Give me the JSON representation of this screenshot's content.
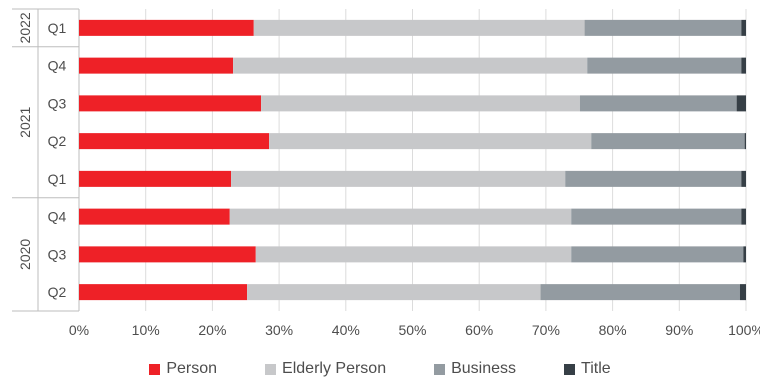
{
  "chart_data": {
    "type": "bar",
    "orientation": "horizontal",
    "stacked": true,
    "percent": true,
    "xlim": [
      0,
      100
    ],
    "x_ticks": [
      "0%",
      "10%",
      "20%",
      "30%",
      "40%",
      "50%",
      "60%",
      "70%",
      "80%",
      "90%",
      "100%"
    ],
    "grid": true,
    "legend_position": "bottom",
    "groups": [
      {
        "label": "2022",
        "categories": [
          "Q1"
        ]
      },
      {
        "label": "2021",
        "categories": [
          "Q4",
          "Q3",
          "Q2",
          "Q1"
        ]
      },
      {
        "label": "2020",
        "categories": [
          "Q4",
          "Q3",
          "Q2"
        ]
      }
    ],
    "categories": [
      "2022 Q1",
      "2021 Q4",
      "2021 Q3",
      "2021 Q2",
      "2021 Q1",
      "2020 Q4",
      "2020 Q3",
      "2020 Q2"
    ],
    "series": [
      {
        "name": "Person",
        "color": "#ee2127",
        "values": [
          26.2,
          23.1,
          27.3,
          28.5,
          22.8,
          22.6,
          26.5,
          25.2
        ]
      },
      {
        "name": "Elderly Person",
        "color": "#c7c8ca",
        "values": [
          49.6,
          53.1,
          47.8,
          48.3,
          50.1,
          51.2,
          47.3,
          44.0
        ]
      },
      {
        "name": "Business",
        "color": "#939ba1",
        "values": [
          23.5,
          23.1,
          23.5,
          23.0,
          26.4,
          25.5,
          25.8,
          29.9
        ]
      },
      {
        "name": "Title",
        "color": "#363f46",
        "values": [
          0.7,
          0.7,
          1.4,
          0.2,
          0.7,
          0.7,
          0.4,
          0.9
        ]
      }
    ]
  }
}
